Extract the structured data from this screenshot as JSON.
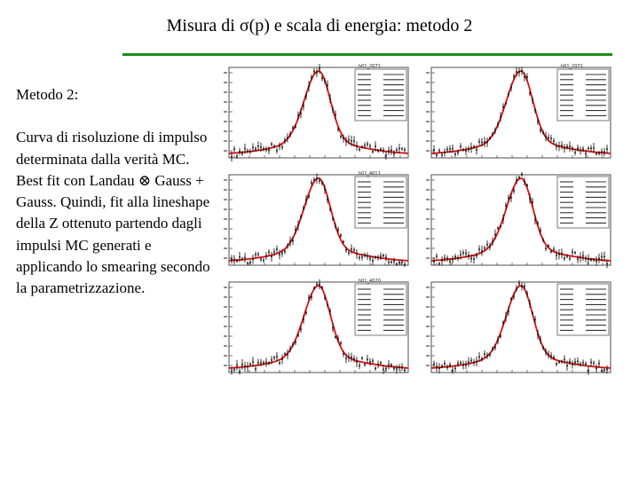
{
  "slide": {
    "title": "Misura di σ(p) e scala di energia: metodo 2"
  },
  "body": {
    "heading": "Metodo 2:",
    "paragraph": "Curva di risoluzione di impulso determinata dalla verità MC. Best fit con Landau ⊗ Gauss + Gauss. Quindi, fit alla lineshape della Z ottenuto partendo dagli impulsi MC generati e applicando lo smearing secondo la parametrizzazione."
  },
  "colors": {
    "title_rule": "#1a8f1a",
    "fit_curve": "#e01010",
    "data_points": "#000000"
  },
  "plots": [
    {
      "position": "top-left",
      "name": "h01_2071"
    },
    {
      "position": "top-right",
      "name": "h01_2071"
    },
    {
      "position": "middle-left",
      "name": "h01_4011"
    },
    {
      "position": "middle-right",
      "name": ""
    },
    {
      "position": "bottom-left",
      "name": "h01_4020"
    },
    {
      "position": "bottom-right",
      "name": ""
    }
  ]
}
